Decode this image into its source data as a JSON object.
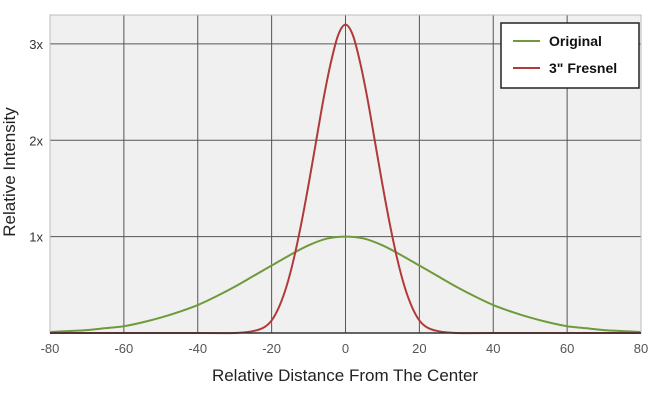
{
  "chart_data": {
    "type": "line",
    "xlabel": "Relative Distance From The Center",
    "ylabel": "Relative Intensity",
    "xlim": [
      -80,
      80
    ],
    "ylim": [
      0,
      3.3
    ],
    "xticks": [
      -80,
      -60,
      -40,
      -20,
      0,
      20,
      40,
      60,
      80
    ],
    "xtick_labels": [
      "-80",
      "-60",
      "-40",
      "-20",
      "0",
      "20",
      "40",
      "60",
      "80"
    ],
    "yticks": [
      1,
      2,
      3
    ],
    "ytick_labels": [
      "1x",
      "2x",
      "3x"
    ],
    "grid": true,
    "legend_position": "top-right",
    "plot_background": "#f0f0f0",
    "series": [
      {
        "name": "Original",
        "color": "#6f9a3a",
        "x": [
          -80,
          -75,
          -70,
          -65,
          -60,
          -55,
          -50,
          -45,
          -40,
          -35,
          -30,
          -25,
          -20,
          -15,
          -10,
          -5,
          0,
          5,
          10,
          15,
          20,
          25,
          30,
          35,
          40,
          45,
          50,
          55,
          60,
          65,
          70,
          75,
          80
        ],
        "y": [
          0.01,
          0.02,
          0.03,
          0.05,
          0.07,
          0.11,
          0.16,
          0.22,
          0.29,
          0.38,
          0.48,
          0.59,
          0.7,
          0.81,
          0.91,
          0.98,
          1.0,
          0.98,
          0.91,
          0.81,
          0.7,
          0.59,
          0.48,
          0.38,
          0.29,
          0.22,
          0.16,
          0.11,
          0.07,
          0.05,
          0.03,
          0.02,
          0.01
        ]
      },
      {
        "name": "3\" Fresnel",
        "color": "#b03a3a",
        "x": [
          -80,
          -40,
          -30,
          -25,
          -22,
          -20,
          -18,
          -16,
          -14,
          -12,
          -10,
          -8,
          -6,
          -4,
          -2,
          0,
          2,
          4,
          6,
          8,
          10,
          12,
          14,
          16,
          18,
          20,
          22,
          25,
          30,
          40,
          80
        ],
        "y": [
          0.0,
          0.0,
          0.0,
          0.02,
          0.06,
          0.13,
          0.27,
          0.48,
          0.77,
          1.13,
          1.54,
          1.98,
          2.42,
          2.8,
          3.09,
          3.2,
          3.09,
          2.8,
          2.42,
          1.98,
          1.54,
          1.13,
          0.77,
          0.48,
          0.27,
          0.13,
          0.06,
          0.02,
          0.0,
          0.0,
          0.0
        ]
      }
    ]
  }
}
